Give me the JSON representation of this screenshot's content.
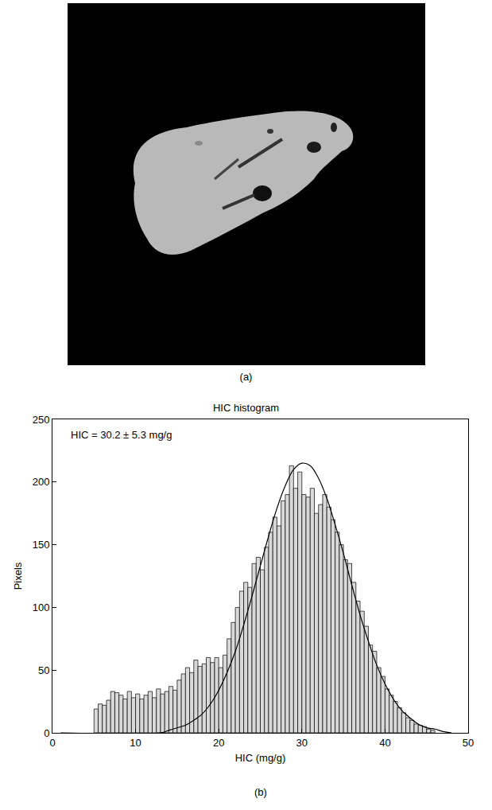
{
  "panel_labels": [
    "(a)",
    "(b)"
  ],
  "chart_data": {
    "type": "histogram",
    "title": "HIC histogram",
    "x_label": "HIC (mg/g)",
    "y_label": "Pixels",
    "annotations": [
      "HIC = 30.2 ± 5.3 mg/g"
    ],
    "bins": [
      5.0,
      5.5,
      6.0,
      6.5,
      7.0,
      7.5,
      8.0,
      8.5,
      9.0,
      9.5,
      10.0,
      10.5,
      11.0,
      11.5,
      12.0,
      12.5,
      13.0,
      13.5,
      14.0,
      14.5,
      15.0,
      15.5,
      16.0,
      16.5,
      17.0,
      17.5,
      18.0,
      18.5,
      19.0,
      19.5,
      20.0,
      20.5,
      21.0,
      21.5,
      22.0,
      22.5,
      23.0,
      23.5,
      24.0,
      24.5,
      25.0,
      25.5,
      26.0,
      26.5,
      27.0,
      27.5,
      28.0,
      28.5,
      29.0,
      29.5,
      30.0,
      30.5,
      31.0,
      31.5,
      32.0,
      32.5,
      33.0,
      33.5,
      34.0,
      34.5,
      35.0,
      35.5,
      36.0,
      36.5,
      37.0,
      37.5,
      38.0,
      38.5,
      39.0,
      39.5,
      40.0,
      40.5,
      41.0,
      41.5,
      42.0,
      42.5,
      43.0,
      43.5,
      44.0,
      44.5,
      45.0,
      45.5,
      46.0
    ],
    "values": [
      19,
      23,
      22,
      26,
      33,
      32,
      30,
      27,
      33,
      28,
      31,
      27,
      30,
      33,
      28,
      35,
      31,
      33,
      37,
      34,
      42,
      47,
      52,
      48,
      58,
      53,
      55,
      60,
      56,
      60,
      52,
      62,
      75,
      88,
      100,
      113,
      120,
      116,
      135,
      140,
      130,
      148,
      160,
      172,
      165,
      185,
      190,
      213,
      195,
      208,
      190,
      188,
      195,
      175,
      182,
      190,
      180,
      170,
      160,
      150,
      138,
      135,
      120,
      105,
      97,
      85,
      70,
      65,
      52,
      45,
      35,
      30,
      25,
      20,
      16,
      12,
      10,
      7,
      6,
      5,
      3,
      2
    ],
    "color": "#d9d9d9",
    "fit_curve": {
      "type": "line",
      "color": "#000000",
      "x": [
        1,
        13,
        14,
        15,
        16,
        17,
        18,
        19,
        20,
        21,
        22,
        23,
        24,
        25,
        26,
        27,
        28,
        29,
        30,
        31,
        32,
        33,
        34,
        35,
        36,
        37,
        38,
        39,
        40,
        41,
        42,
        43,
        44,
        45,
        46,
        47,
        48
      ],
      "values": [
        0,
        0,
        2,
        4,
        6,
        10,
        15,
        23,
        34,
        48,
        65,
        86,
        109,
        133,
        157,
        179,
        197,
        210,
        215,
        213,
        203,
        187,
        166,
        143,
        118,
        94,
        73,
        54,
        39,
        27,
        18,
        12,
        7,
        4,
        3,
        1,
        0
      ]
    },
    "xlim": [
      0,
      50
    ],
    "xticks": [
      0,
      10,
      20,
      30,
      40,
      50
    ],
    "ylim": [
      0,
      250
    ],
    "yticks": [
      0,
      50,
      100,
      150,
      200,
      250
    ],
    "grid": false
  }
}
